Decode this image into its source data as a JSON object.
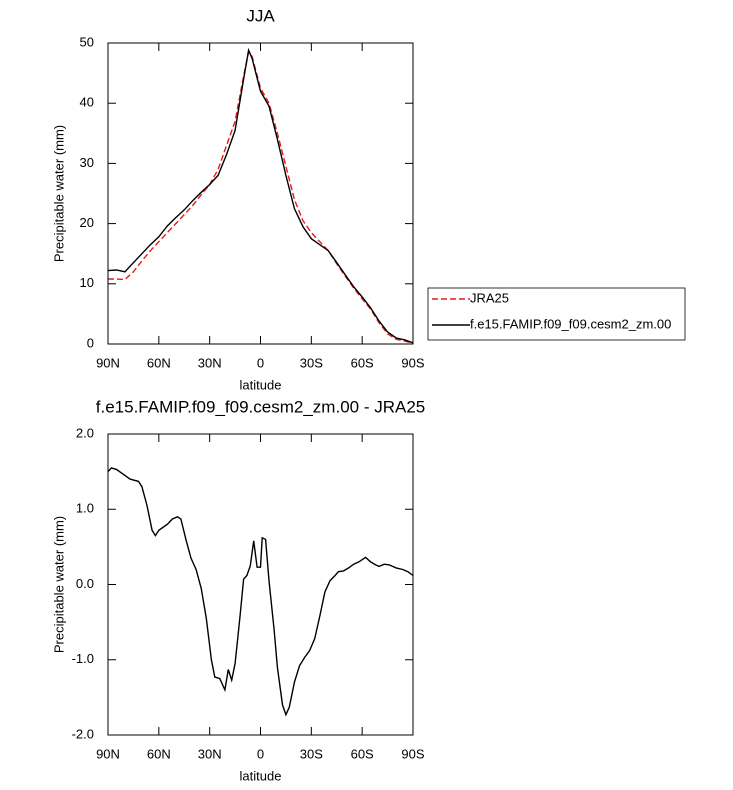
{
  "chart_data": [
    {
      "type": "line",
      "title": "JJA",
      "xlabel": "latitude",
      "ylabel": "Precipitable water (mm)",
      "xlim": [
        90,
        -90
      ],
      "ylim": [
        0,
        50
      ],
      "xticks": [
        {
          "value": 90,
          "label": "90N"
        },
        {
          "value": 60,
          "label": "60N"
        },
        {
          "value": 30,
          "label": "30N"
        },
        0,
        {
          "value": -30,
          "label": "30S"
        },
        {
          "value": -60,
          "label": "60S"
        },
        {
          "value": -90,
          "label": "90S"
        }
      ],
      "yticks": [
        0,
        10,
        20,
        30,
        40,
        50
      ],
      "legend": "outside-right",
      "series": [
        {
          "name": "JRA25",
          "color": "#e41a1c",
          "dash": true,
          "x": [
            90,
            85,
            80,
            75,
            70,
            65,
            60,
            55,
            50,
            45,
            40,
            35,
            30,
            25,
            20,
            15,
            10,
            7,
            5,
            0,
            -5,
            -10,
            -15,
            -20,
            -25,
            -30,
            -35,
            -40,
            -45,
            -50,
            -55,
            -60,
            -65,
            -70,
            -75,
            -80,
            -85,
            -90
          ],
          "values": [
            10.8,
            10.8,
            10.7,
            12.0,
            13.8,
            15.5,
            17.0,
            18.5,
            20.0,
            21.5,
            23.0,
            24.8,
            26.5,
            29.0,
            33.0,
            37.0,
            44.5,
            48.5,
            47.8,
            42.5,
            40.0,
            35.0,
            29.5,
            24.0,
            20.5,
            18.5,
            17.0,
            15.5,
            13.3,
            11.3,
            9.3,
            7.5,
            5.8,
            3.5,
            1.7,
            0.8,
            0.5,
            0.1
          ]
        },
        {
          "name": "f.e15.FAMIP.f09_f09.cesm2_zm.00",
          "color": "#000000",
          "dash": false,
          "x": [
            90,
            85,
            80,
            75,
            70,
            65,
            60,
            55,
            50,
            45,
            40,
            35,
            30,
            25,
            20,
            15,
            10,
            7,
            5,
            0,
            -5,
            -10,
            -15,
            -20,
            -25,
            -30,
            -35,
            -40,
            -45,
            -50,
            -55,
            -60,
            -65,
            -70,
            -75,
            -80,
            -85,
            -90
          ],
          "values": [
            12.2,
            12.3,
            12.0,
            13.5,
            15.0,
            16.5,
            17.8,
            19.6,
            21.0,
            22.3,
            23.8,
            25.2,
            26.5,
            28.0,
            31.5,
            35.5,
            44.0,
            48.8,
            47.5,
            42.0,
            39.5,
            34.0,
            28.0,
            22.5,
            19.5,
            17.5,
            16.5,
            15.5,
            13.5,
            11.5,
            9.5,
            7.8,
            6.0,
            3.8,
            2.0,
            1.0,
            0.7,
            0.2
          ]
        }
      ]
    },
    {
      "type": "line",
      "title": "f.e15.FAMIP.f09_f09.cesm2_zm.00 - JRA25",
      "xlabel": "latitude",
      "ylabel": "Precipitable water (mm)",
      "xlim": [
        90,
        -90
      ],
      "ylim": [
        -2,
        2
      ],
      "xticks": [
        {
          "value": 90,
          "label": "90N"
        },
        {
          "value": 60,
          "label": "60N"
        },
        {
          "value": 30,
          "label": "30N"
        },
        0,
        {
          "value": -30,
          "label": "30S"
        },
        {
          "value": -60,
          "label": "60S"
        },
        {
          "value": -90,
          "label": "90S"
        }
      ],
      "yticks": [
        {
          "value": -2,
          "label": "-2.0"
        },
        {
          "value": -1,
          "label": "-1.0"
        },
        {
          "value": 0,
          "label": "0.0"
        },
        {
          "value": 1,
          "label": "1.0"
        },
        {
          "value": 2,
          "label": "2.0"
        }
      ],
      "series": [
        {
          "color": "#000000",
          "dash": false,
          "x": [
            90,
            88,
            85,
            80,
            77,
            72,
            70,
            67,
            64,
            62,
            60,
            55,
            52,
            49,
            47,
            44,
            41,
            38,
            35,
            32,
            29,
            27,
            24,
            21,
            19,
            17,
            15,
            12,
            10,
            8,
            6,
            4,
            2,
            0,
            -1,
            -3,
            -5,
            -8,
            -10,
            -13,
            -15,
            -17,
            -20,
            -23,
            -26,
            -29,
            -32,
            -35,
            -38,
            -41,
            -44,
            -46,
            -49,
            -52,
            -55,
            -58,
            -62,
            -65,
            -68,
            -70,
            -73,
            -76,
            -80,
            -84,
            -87,
            -90
          ],
          "values": [
            1.5,
            1.55,
            1.53,
            1.45,
            1.4,
            1.37,
            1.3,
            1.05,
            0.72,
            0.65,
            0.72,
            0.8,
            0.87,
            0.9,
            0.87,
            0.6,
            0.35,
            0.2,
            -0.05,
            -0.45,
            -1.0,
            -1.23,
            -1.25,
            -1.4,
            -1.13,
            -1.27,
            -1.05,
            -0.4,
            0.07,
            0.12,
            0.25,
            0.58,
            0.23,
            0.23,
            0.62,
            0.6,
            0.05,
            -0.6,
            -1.1,
            -1.6,
            -1.73,
            -1.63,
            -1.3,
            -1.08,
            -0.97,
            -0.88,
            -0.72,
            -0.42,
            -0.1,
            0.05,
            0.12,
            0.17,
            0.18,
            0.22,
            0.27,
            0.3,
            0.36,
            0.3,
            0.26,
            0.24,
            0.27,
            0.26,
            0.22,
            0.2,
            0.17,
            0.12
          ]
        }
      ]
    }
  ]
}
